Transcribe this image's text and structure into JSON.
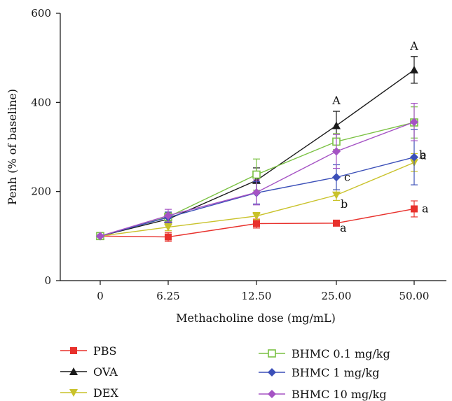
{
  "chart_data": {
    "type": "line",
    "title": "",
    "xlabel": "Methacholine dose (mg/mL)",
    "ylabel": "Penh (% of baseline)",
    "categories": [
      "0",
      "6.25",
      "12.50",
      "25.00",
      "50.00"
    ],
    "ylim": [
      0,
      600
    ],
    "yticks": [
      0,
      200,
      400,
      600
    ],
    "grid": false,
    "legend_position": "bottom",
    "series": [
      {
        "name": "PBS",
        "color": "#e8312c",
        "marker": "square-filled",
        "values": [
          100,
          98,
          128,
          129,
          161
        ],
        "errors": [
          0,
          10,
          10,
          0,
          18
        ],
        "annotations": [
          "",
          "",
          "",
          "a",
          "a"
        ]
      },
      {
        "name": "OVA",
        "color": "#1a1a1a",
        "marker": "triangle-up",
        "values": [
          100,
          138,
          225,
          348,
          473
        ],
        "errors": [
          0,
          12,
          28,
          32,
          30
        ],
        "annotations": [
          "",
          "",
          "",
          "A",
          "A"
        ]
      },
      {
        "name": "DEX",
        "color": "#c9c22a",
        "marker": "triangle-down",
        "values": [
          100,
          120,
          145,
          192,
          265
        ],
        "errors": [
          0,
          8,
          8,
          12,
          20
        ],
        "annotations": [
          "",
          "",
          "",
          "b",
          "a"
        ]
      },
      {
        "name": "BHMC 0.1 mg/kg",
        "color": "#7ac142",
        "marker": "square-open",
        "values": [
          100,
          143,
          238,
          312,
          355
        ],
        "errors": [
          0,
          10,
          35,
          18,
          35
        ],
        "annotations": [
          "",
          "",
          "",
          "",
          ""
        ]
      },
      {
        "name": "BHMC 1 mg/kg",
        "color": "#3b4fb8",
        "marker": "diamond",
        "values": [
          100,
          142,
          197,
          232,
          277
        ],
        "errors": [
          0,
          12,
          25,
          28,
          62
        ],
        "annotations": [
          "",
          "",
          "",
          "c",
          "b"
        ]
      },
      {
        "name": "BHMC 10 mg/kg",
        "color": "#a553c4",
        "marker": "diamond",
        "values": [
          100,
          146,
          198,
          290,
          356
        ],
        "errors": [
          0,
          14,
          28,
          38,
          42
        ],
        "annotations": [
          "",
          "",
          "",
          "",
          ""
        ]
      }
    ]
  }
}
